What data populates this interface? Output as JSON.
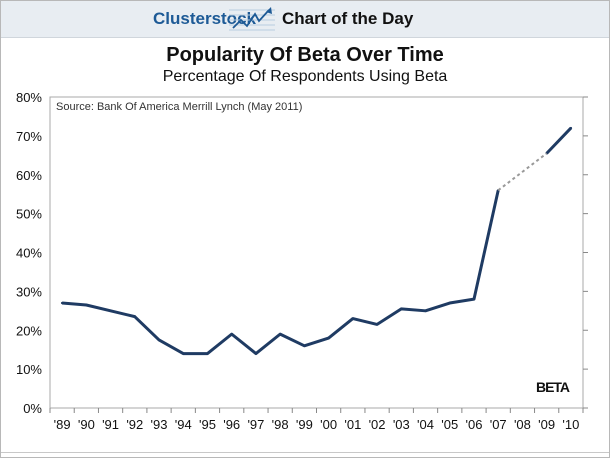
{
  "header": {
    "brand": "Clusterstock",
    "tagline": "Chart of the Day",
    "logo_icon": "rising-line-chart-icon",
    "brand_color": "#1d5a96",
    "background": "#e8edf2"
  },
  "chart_data": {
    "type": "line",
    "title": "Popularity Of Beta Over Time",
    "subtitle": "Percentage Of Respondents Using Beta",
    "source": "Source: Bank Of America Merrill Lynch (May 2011)",
    "series_label": "BETA",
    "categories": [
      "'89",
      "'90",
      "'91",
      "'92",
      "'93",
      "'94",
      "'95",
      "'96",
      "'97",
      "'98",
      "'99",
      "'00",
      "'01",
      "'02",
      "'03",
      "'04",
      "'05",
      "'06",
      "'07",
      "'08",
      "'09",
      "'10"
    ],
    "series": [
      {
        "values": [
          27,
          26.5,
          25,
          23.5,
          17.5,
          14,
          14,
          19,
          14,
          19,
          16,
          18,
          23,
          21.5,
          25.5,
          25,
          27,
          28,
          56,
          null,
          65.5,
          72
        ],
        "color": "#1f3b63"
      }
    ],
    "interpolated_gap": {
      "from": "'07",
      "to": "'09",
      "style": "dashed",
      "color": "#999999"
    },
    "ylim": [
      0,
      80
    ],
    "yticks": [
      0,
      10,
      20,
      30,
      40,
      50,
      60,
      70,
      80
    ],
    "ytick_labels": [
      "0%",
      "10%",
      "20%",
      "30%",
      "40%",
      "50%",
      "60%",
      "70%",
      "80%"
    ],
    "xlabel": "",
    "ylabel": "",
    "grid": false
  }
}
